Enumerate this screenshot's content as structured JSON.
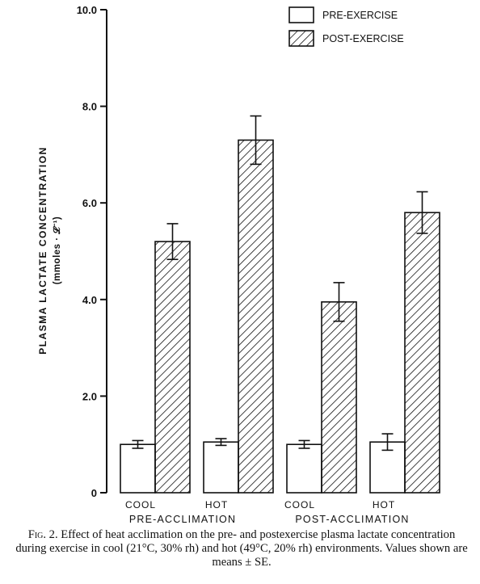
{
  "chart_data": {
    "type": "bar",
    "groups": [
      {
        "label": "PRE-ACCLIMATION",
        "categories": [
          "COOL",
          "HOT"
        ]
      },
      {
        "label": "POST-ACCLIMATION",
        "categories": [
          "COOL",
          "HOT"
        ]
      }
    ],
    "categories": [
      "COOL",
      "HOT",
      "COOL",
      "HOT"
    ],
    "series": [
      {
        "name": "PRE-EXERCISE",
        "pattern": "open",
        "values": [
          1.0,
          1.05,
          1.0,
          1.05
        ],
        "se": [
          0.08,
          0.07,
          0.08,
          0.17
        ]
      },
      {
        "name": "POST-EXERCISE",
        "pattern": "hatched",
        "values": [
          5.2,
          7.3,
          3.95,
          5.8
        ],
        "se": [
          0.37,
          0.5,
          0.4,
          0.43
        ]
      }
    ],
    "ylabel": "PLASMA LACTATE CONCENTRATION",
    "yunit": "(mmoles · 𝓛⁻¹)",
    "yticks": [
      "0",
      "2.0",
      "4.0",
      "6.0",
      "8.0",
      "10.0"
    ],
    "ylim": [
      0,
      10
    ],
    "legend_position": "top-right",
    "grid": false
  },
  "caption": {
    "figure_label": "Fig. 2.",
    "text": "Effect of heat acclimation on the pre- and postexercise plasma lactate concentration during exercise in cool (21°C, 30% rh) and hot (49°C, 20% rh) environments. Values shown are means ± SE."
  },
  "colors": {
    "ink": "#111111",
    "background": "#ffffff"
  }
}
